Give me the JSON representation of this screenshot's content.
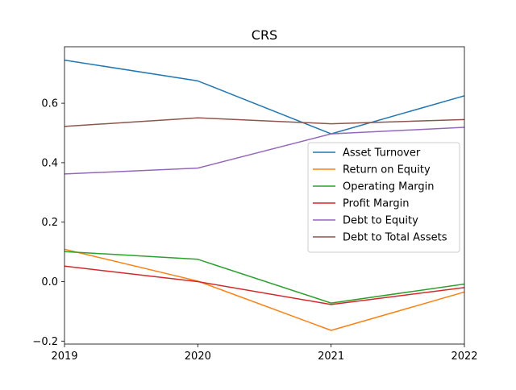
{
  "chart_data": {
    "type": "line",
    "title": "CRS",
    "xlabel": "",
    "ylabel": "",
    "x": [
      2019,
      2020,
      2021,
      2022
    ],
    "xlim": [
      2019,
      2022
    ],
    "ylim": [
      -0.21,
      0.79
    ],
    "x_ticks": [
      "2019",
      "2020",
      "2021",
      "2022"
    ],
    "y_ticks": [
      {
        "value": -0.2,
        "label": "−0.2"
      },
      {
        "value": 0.0,
        "label": "0.0"
      },
      {
        "value": 0.2,
        "label": "0.2"
      },
      {
        "value": 0.4,
        "label": "0.4"
      },
      {
        "value": 0.6,
        "label": "0.6"
      }
    ],
    "grid": false,
    "legend_position": "center-right",
    "series": [
      {
        "name": "Asset Turnover",
        "color": "#1f77b4",
        "values": [
          0.745,
          0.675,
          0.497,
          0.625
        ]
      },
      {
        "name": "Return on Equity",
        "color": "#ff7f0e",
        "values": [
          0.109,
          0.002,
          -0.164,
          -0.035
        ]
      },
      {
        "name": "Operating Margin",
        "color": "#2ca02c",
        "values": [
          0.101,
          0.075,
          -0.072,
          -0.008
        ]
      },
      {
        "name": "Profit Margin",
        "color": "#d62728",
        "values": [
          0.052,
          0.0,
          -0.077,
          -0.02
        ]
      },
      {
        "name": "Debt to Equity",
        "color": "#9467bd",
        "values": [
          0.362,
          0.382,
          0.497,
          0.519
        ]
      },
      {
        "name": "Debt to Total Assets",
        "color": "#8c564b",
        "values": [
          0.522,
          0.551,
          0.531,
          0.545
        ]
      }
    ]
  }
}
